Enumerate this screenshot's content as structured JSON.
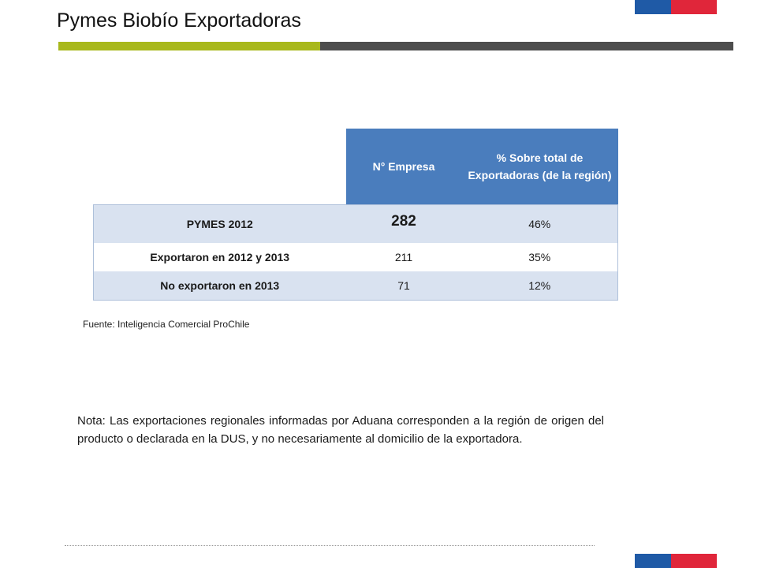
{
  "title": "Pymes Biobío Exportadoras",
  "colors": {
    "accent_green": "#a8b81c",
    "accent_gray": "#4d4d4d",
    "header_blue": "#4a7dbd",
    "row_shade": "#d9e2f0",
    "flag_blue": "#1f5aa6",
    "flag_red": "#e0263a"
  },
  "table": {
    "headers": {
      "count": "N° Empresa",
      "pct": "% Sobre total de Exportadoras (de la región)"
    },
    "rows": [
      {
        "label": "PYMES 2012",
        "count": "282",
        "pct": "46%"
      },
      {
        "label": "Exportaron en 2012 y 2013",
        "count": "211",
        "pct": "35%"
      },
      {
        "label": "No exportaron en 2013",
        "count": "71",
        "pct": "12%"
      }
    ]
  },
  "source": "Fuente: Inteligencia Comercial ProChile",
  "note": "Nota: Las exportaciones regionales informadas por Aduana corresponden a la región de origen del producto o declarada en la DUS, y no necesariamente al domicilio de la exportadora."
}
